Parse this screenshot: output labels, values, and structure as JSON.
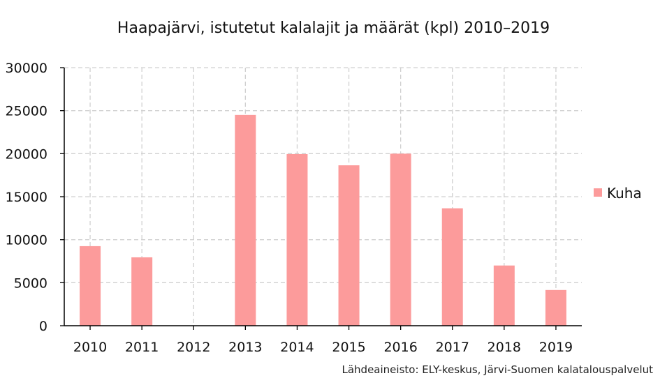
{
  "chart_data": {
    "type": "bar",
    "title": "Haapajärvi, istutetut kalalajit ja määrät (kpl) 2010–2019",
    "categories": [
      "2010",
      "2011",
      "2012",
      "2013",
      "2014",
      "2015",
      "2016",
      "2017",
      "2018",
      "2019"
    ],
    "series": [
      {
        "name": "Kuha",
        "values": [
          9250,
          7950,
          0,
          24500,
          19950,
          18650,
          20000,
          13650,
          7000,
          4150
        ],
        "color": "#fc9b9b"
      }
    ],
    "yticks": [
      "0",
      "5000",
      "10000",
      "15000",
      "20000",
      "25000",
      "30000"
    ],
    "ylim": [
      0,
      30000
    ],
    "grid": true,
    "legend": "right",
    "source": "Lähdeaineisto: ELY-keskus, Järvi-Suomen kalatalouspalvelut"
  }
}
